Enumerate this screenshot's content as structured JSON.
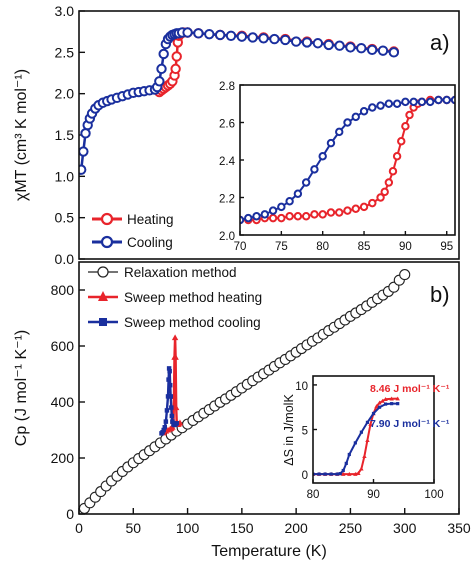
{
  "chart_data": [
    {
      "id": "a",
      "type": "line",
      "panel_label": "a)",
      "ylabel": "χMT (cm³ K mol⁻¹)",
      "ylim": [
        0,
        3.0
      ],
      "yticks": [
        "0.0",
        "0.5",
        "1.0",
        "1.5",
        "2.0",
        "2.5",
        "3.0"
      ],
      "xlim": [
        0,
        350
      ],
      "legend": {
        "position": "bottom-left"
      },
      "series": [
        {
          "name": "Heating",
          "color": "#e8242b",
          "marker": "circle-open",
          "x": [
            74,
            76,
            78,
            80,
            82,
            84,
            86,
            88,
            89,
            90,
            91,
            92,
            93,
            94,
            96,
            100,
            110,
            130,
            150,
            170,
            190,
            210,
            230,
            250,
            270,
            290
          ],
          "y": [
            2.02,
            2.04,
            2.06,
            2.08,
            2.1,
            2.12,
            2.15,
            2.22,
            2.3,
            2.45,
            2.62,
            2.7,
            2.72,
            2.73,
            2.74,
            2.74,
            2.73,
            2.71,
            2.7,
            2.68,
            2.66,
            2.63,
            2.6,
            2.57,
            2.54,
            2.51
          ]
        },
        {
          "name": "Cooling",
          "color": "#1a2f9e",
          "marker": "circle-open",
          "x": [
            2,
            4,
            6,
            8,
            10,
            12,
            15,
            18,
            22,
            26,
            30,
            35,
            40,
            45,
            50,
            55,
            60,
            65,
            70,
            72,
            74,
            76,
            78,
            80,
            82,
            84,
            86,
            88,
            90,
            92,
            95,
            100,
            110,
            120,
            130,
            140,
            150,
            160,
            170,
            180,
            190,
            200,
            210,
            220,
            230,
            240,
            250,
            260,
            270,
            280,
            290
          ],
          "y": [
            1.08,
            1.3,
            1.52,
            1.62,
            1.7,
            1.76,
            1.82,
            1.86,
            1.89,
            1.91,
            1.93,
            1.95,
            1.97,
            1.99,
            2.01,
            2.02,
            2.03,
            2.04,
            2.05,
            2.08,
            2.15,
            2.3,
            2.48,
            2.6,
            2.66,
            2.69,
            2.71,
            2.72,
            2.73,
            2.73,
            2.74,
            2.74,
            2.73,
            2.72,
            2.71,
            2.7,
            2.69,
            2.68,
            2.67,
            2.66,
            2.65,
            2.63,
            2.62,
            2.61,
            2.59,
            2.58,
            2.56,
            2.55,
            2.53,
            2.52,
            2.5
          ]
        }
      ]
    },
    {
      "id": "a-inset",
      "type": "line",
      "xlim": [
        70,
        96
      ],
      "xticks": [
        "70",
        "75",
        "80",
        "85",
        "90",
        "95"
      ],
      "ylim": [
        2.0,
        2.8
      ],
      "yticks": [
        "2.0",
        "2.2",
        "2.4",
        "2.6",
        "2.8"
      ],
      "series": [
        {
          "name": "Heating",
          "color": "#e8242b",
          "x": [
            70,
            71,
            72,
            73,
            74,
            75,
            76,
            77,
            78,
            79,
            80,
            81,
            82,
            83,
            84,
            85,
            86,
            87,
            87.5,
            88,
            88.5,
            89,
            89.5,
            90,
            90.5,
            91,
            91.5,
            92,
            93,
            94,
            95,
            96
          ],
          "y": [
            2.08,
            2.08,
            2.08,
            2.09,
            2.09,
            2.09,
            2.1,
            2.1,
            2.1,
            2.11,
            2.11,
            2.12,
            2.12,
            2.13,
            2.14,
            2.15,
            2.17,
            2.2,
            2.23,
            2.28,
            2.34,
            2.42,
            2.5,
            2.58,
            2.64,
            2.68,
            2.7,
            2.71,
            2.72,
            2.72,
            2.72,
            2.72
          ]
        },
        {
          "name": "Cooling",
          "color": "#1a2f9e",
          "x": [
            70,
            71,
            72,
            73,
            74,
            75,
            76,
            77,
            78,
            79,
            80,
            81,
            82,
            83,
            84,
            85,
            86,
            87,
            88,
            89,
            90,
            91,
            92,
            93,
            94,
            95,
            96
          ],
          "y": [
            2.08,
            2.09,
            2.1,
            2.11,
            2.13,
            2.15,
            2.18,
            2.22,
            2.28,
            2.35,
            2.42,
            2.49,
            2.55,
            2.6,
            2.63,
            2.66,
            2.68,
            2.69,
            2.7,
            2.7,
            2.71,
            2.71,
            2.71,
            2.71,
            2.72,
            2.72,
            2.72
          ]
        }
      ]
    },
    {
      "id": "b",
      "type": "line",
      "panel_label": "b)",
      "ylabel": "Cp (J mol⁻¹ K⁻¹)",
      "xlabel": "Temperature (K)",
      "xlim": [
        0,
        350
      ],
      "xticks": [
        "0",
        "50",
        "100",
        "150",
        "200",
        "250",
        "300",
        "350"
      ],
      "ylim": [
        0,
        900
      ],
      "yticks": [
        "0",
        "200",
        "400",
        "600",
        "800"
      ],
      "legend": {
        "position": "top-left"
      },
      "series": [
        {
          "name": "Relaxation method",
          "color": "#222222",
          "marker": "circle-open",
          "x": [
            5,
            10,
            15,
            20,
            25,
            30,
            35,
            40,
            45,
            50,
            55,
            60,
            65,
            70,
            75,
            80,
            85,
            90,
            95,
            100,
            105,
            110,
            115,
            120,
            125,
            130,
            135,
            140,
            145,
            150,
            155,
            160,
            165,
            170,
            175,
            180,
            185,
            190,
            195,
            200,
            205,
            210,
            215,
            220,
            225,
            230,
            235,
            240,
            245,
            250,
            255,
            260,
            265,
            270,
            275,
            280,
            285,
            290,
            295,
            300
          ],
          "y": [
            20,
            40,
            60,
            80,
            100,
            118,
            135,
            152,
            168,
            183,
            198,
            212,
            226,
            240,
            254,
            268,
            282,
            296,
            308,
            321,
            334,
            347,
            360,
            373,
            386,
            399,
            411,
            424,
            437,
            450,
            463,
            476,
            489,
            501,
            514,
            527,
            540,
            552,
            565,
            578,
            591,
            604,
            617,
            629,
            642,
            655,
            667,
            680,
            693,
            706,
            718,
            730,
            743,
            756,
            769,
            782,
            795,
            810,
            835,
            855
          ]
        },
        {
          "name": "Sweep method heating",
          "color": "#e8242b",
          "marker": "triangle",
          "x": [
            78,
            80,
            82,
            84,
            85,
            86,
            87,
            87.5,
            88,
            88.5,
            89,
            89.5,
            90,
            90.5,
            91,
            92,
            93
          ],
          "y": [
            290,
            296,
            300,
            304,
            306,
            310,
            330,
            420,
            560,
            630,
            560,
            380,
            330,
            322,
            320,
            322,
            326
          ]
        },
        {
          "name": "Sweep method cooling",
          "color": "#1a2f9e",
          "marker": "square",
          "x": [
            76,
            77,
            78,
            79,
            80,
            81,
            82,
            82.5,
            83,
            83.5,
            84,
            84.5,
            85,
            85.5,
            86,
            87,
            88,
            89,
            90
          ],
          "y": [
            288,
            292,
            300,
            310,
            330,
            370,
            420,
            480,
            520,
            510,
            460,
            420,
            380,
            350,
            330,
            320,
            318,
            320,
            324
          ]
        }
      ]
    },
    {
      "id": "b-inset",
      "type": "line",
      "ylabel": "ΔS in J/molK",
      "xlim": [
        80,
        100
      ],
      "xticks": [
        "80",
        "90",
        "100"
      ],
      "ylim": [
        -1,
        11
      ],
      "yticks": [
        "0",
        "5",
        "10"
      ],
      "annotations": [
        {
          "text": "8.46 J mol⁻¹ K⁻¹",
          "color": "#e8242b"
        },
        {
          "text": "7.90 J mol⁻¹ K⁻¹",
          "color": "#1a2f9e"
        }
      ],
      "series": [
        {
          "name": "heating",
          "color": "#e8242b",
          "x": [
            80,
            81,
            82,
            83,
            84,
            85,
            86,
            87,
            87.5,
            88,
            88.5,
            89,
            89.5,
            90,
            90.5,
            91,
            91.5,
            92,
            93,
            94
          ],
          "y": [
            0,
            0,
            0,
            0,
            0,
            0,
            0,
            0,
            0.1,
            0.6,
            2.0,
            3.8,
            5.6,
            6.8,
            7.6,
            8.0,
            8.2,
            8.4,
            8.45,
            8.46
          ]
        },
        {
          "name": "cooling",
          "color": "#1a2f9e",
          "x": [
            80,
            81,
            82,
            83,
            84,
            84.5,
            85,
            85.5,
            86,
            87,
            88,
            89,
            90,
            91,
            92,
            93,
            94
          ],
          "y": [
            0,
            0,
            0,
            0,
            0,
            0.05,
            0.4,
            1.2,
            2.2,
            3.5,
            4.7,
            5.8,
            6.8,
            7.5,
            7.85,
            7.9,
            7.9
          ]
        }
      ]
    }
  ]
}
